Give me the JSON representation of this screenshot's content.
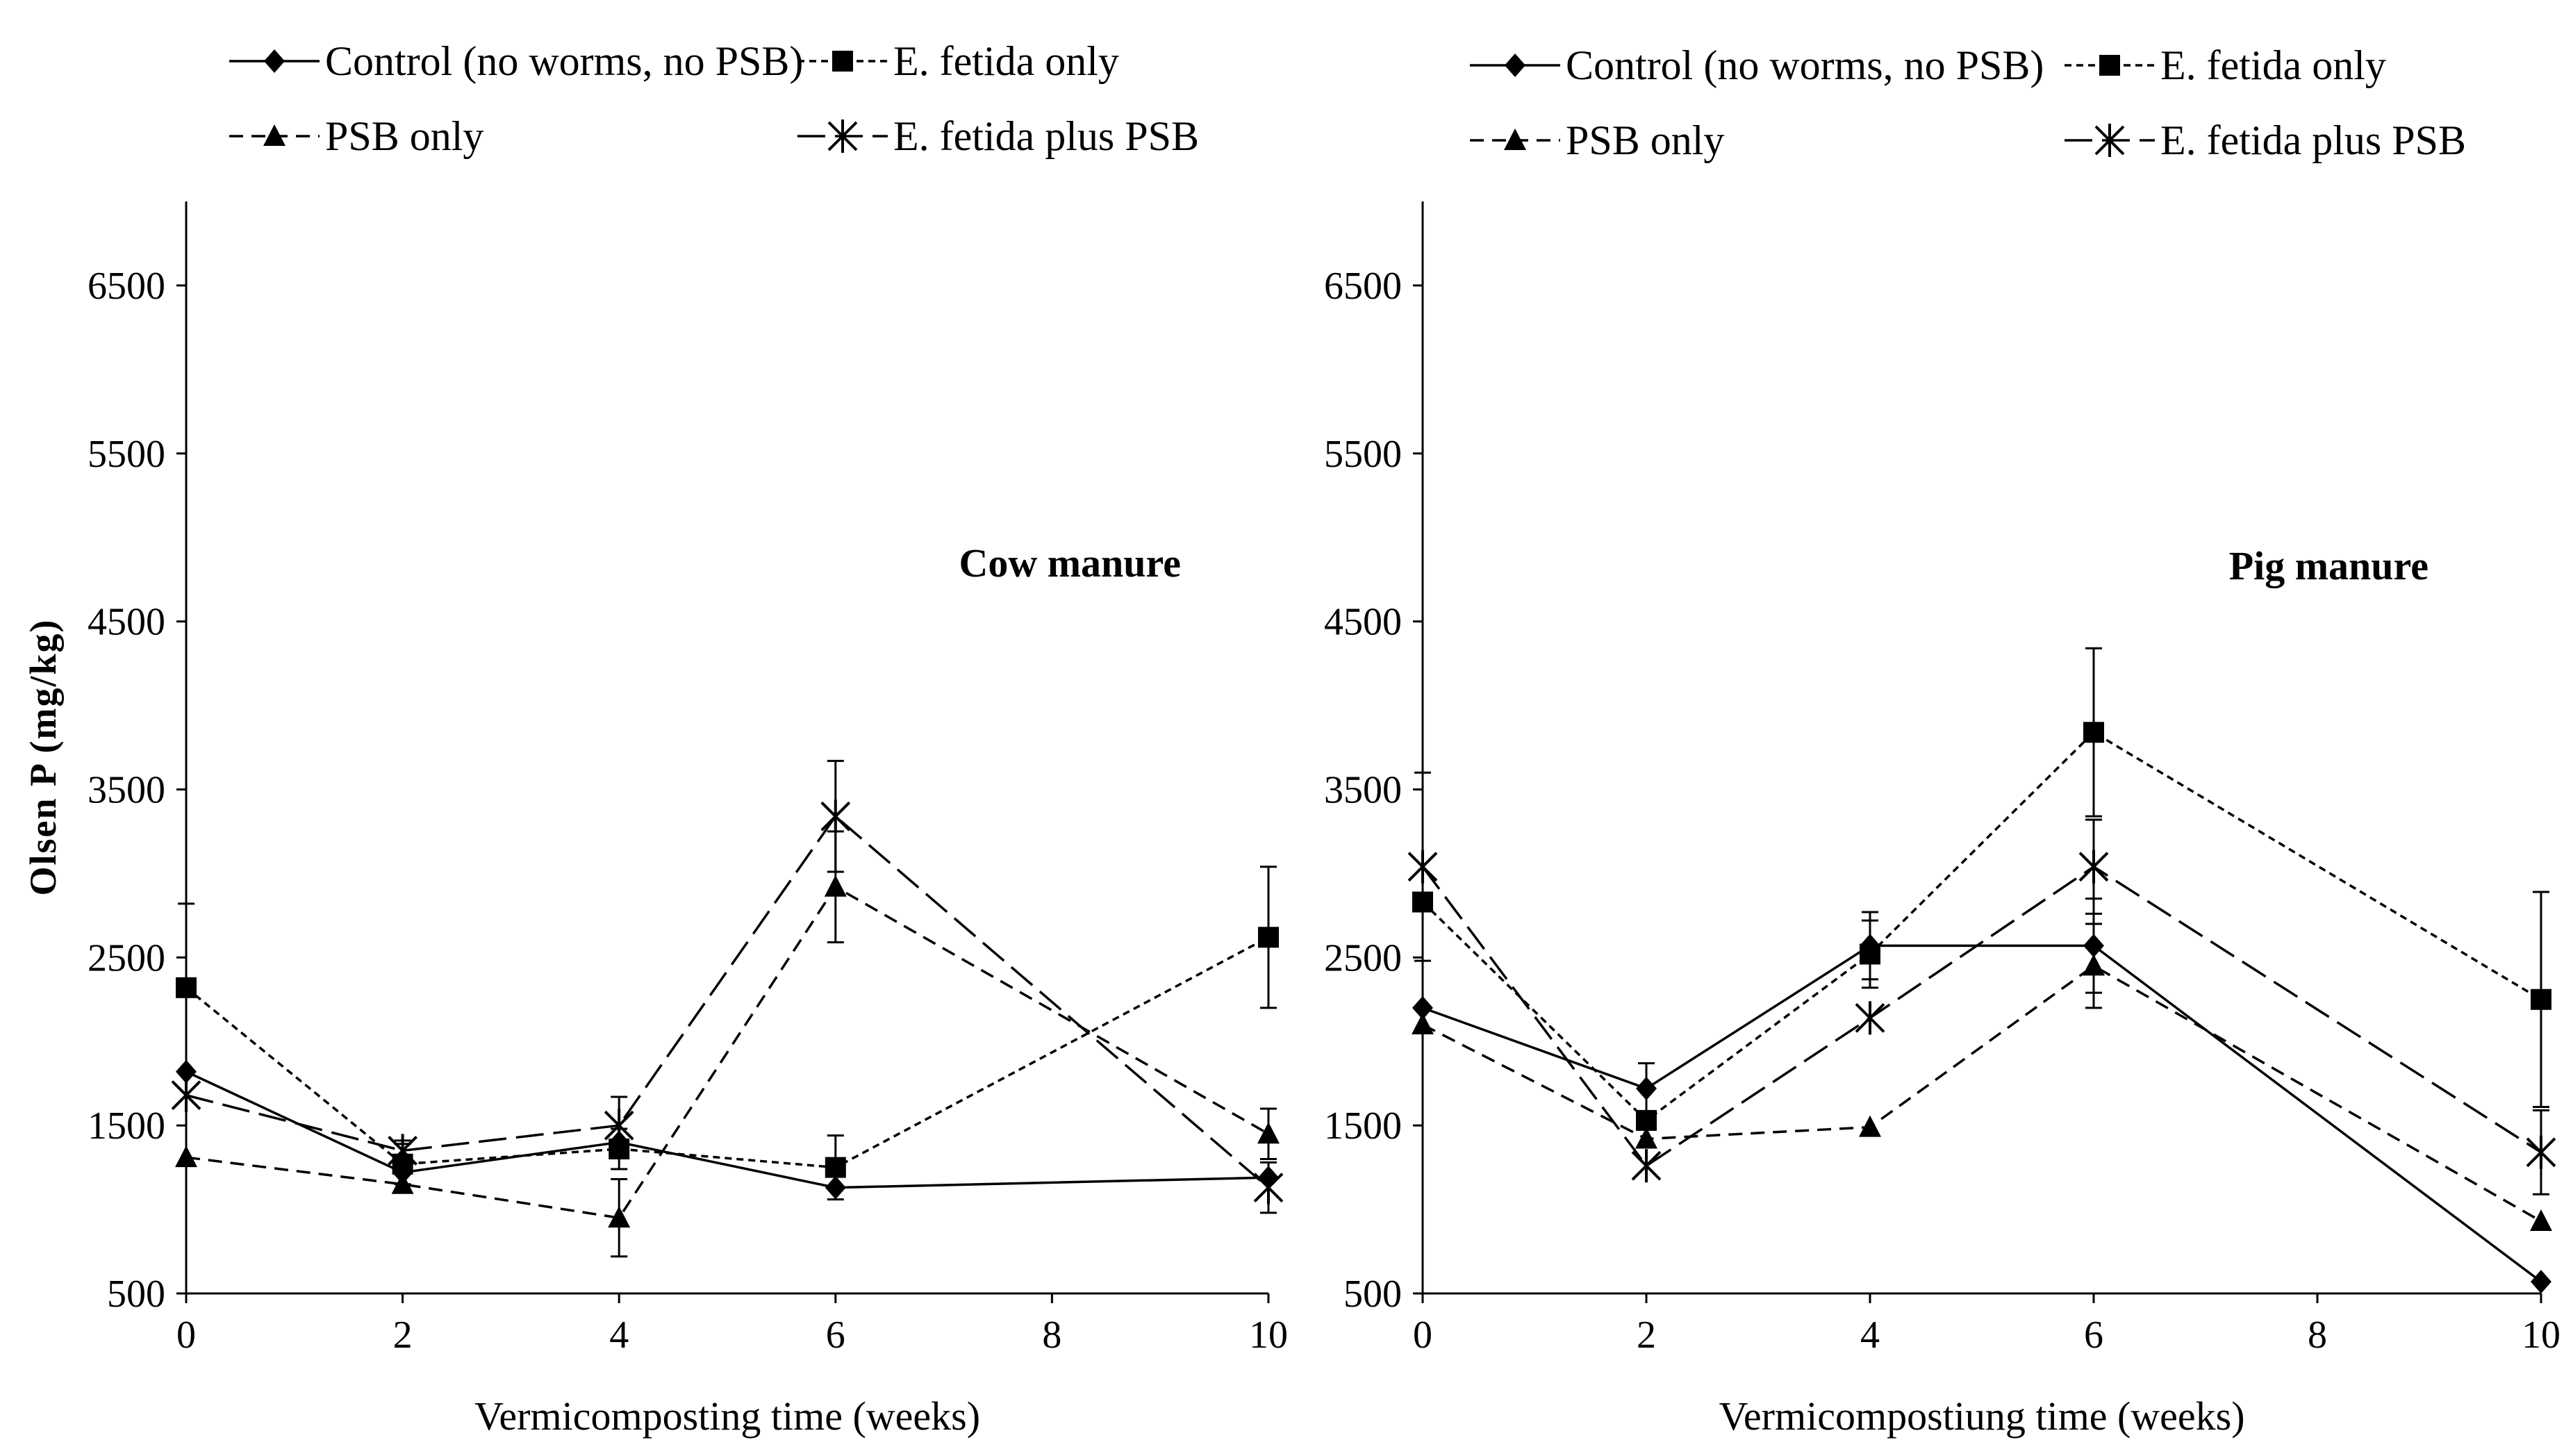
{
  "figure": {
    "y_axis_label": "Olsen P (mg/kg)"
  },
  "chart_data": [
    {
      "type": "line",
      "title": "Cow manure",
      "xlabel": "Vermicomposting time (weeks)",
      "ylabel": "Olsen P (mg/kg)",
      "xlim": [
        0,
        10
      ],
      "ylim": [
        500,
        7000
      ],
      "x_ticks": [
        0,
        2,
        4,
        6,
        8,
        10
      ],
      "y_ticks": [
        500,
        1500,
        2500,
        3500,
        4500,
        5500,
        6500
      ],
      "grid": false,
      "legend": "top",
      "series": [
        {
          "name": "Control (no worms, no PSB)",
          "marker": "diamond",
          "dash": "solid",
          "x": [
            0,
            2,
            4,
            6,
            10
          ],
          "values": [
            1820,
            1220,
            1400,
            1130,
            1190
          ],
          "errors": [
            0,
            0,
            0,
            0,
            0
          ]
        },
        {
          "name": "E. fetida only",
          "marker": "square",
          "dash": "dotted",
          "x": [
            0,
            2,
            4,
            6,
            10
          ],
          "values": [
            2320,
            1270,
            1360,
            1250,
            2620
          ],
          "errors": [
            500,
            120,
            120,
            190,
            420
          ]
        },
        {
          "name": "PSB only",
          "marker": "triangle",
          "dash": "dashed",
          "x": [
            0,
            2,
            4,
            6,
            10
          ],
          "values": [
            1310,
            1150,
            950,
            2920,
            1450
          ],
          "errors": [
            0,
            0,
            230,
            330,
            150
          ]
        },
        {
          "name": "E. fetida plus PSB",
          "marker": "asterisk",
          "dash": "longdash",
          "x": [
            0,
            2,
            4,
            6,
            10
          ],
          "values": [
            1680,
            1350,
            1500,
            3340,
            1130
          ],
          "errors": [
            0,
            60,
            170,
            330,
            150
          ]
        }
      ]
    },
    {
      "type": "line",
      "title": "Pig manure",
      "xlabel": "Vermicompostiung time (weeks)",
      "ylabel": "",
      "xlim": [
        0,
        10
      ],
      "ylim": [
        500,
        7000
      ],
      "x_ticks": [
        0,
        2,
        4,
        6,
        8,
        10
      ],
      "y_ticks": [
        500,
        1500,
        2500,
        3500,
        4500,
        5500,
        6500
      ],
      "grid": false,
      "legend": "top",
      "series": [
        {
          "name": "Control (no worms, no PSB)",
          "marker": "diamond",
          "dash": "solid",
          "x": [
            0,
            2,
            4,
            6,
            10
          ],
          "values": [
            2200,
            1720,
            2570,
            2570,
            570
          ],
          "errors": [
            0,
            150,
            200,
            280,
            0
          ]
        },
        {
          "name": "E. fetida only",
          "marker": "square",
          "dash": "dotted",
          "x": [
            0,
            2,
            4,
            6,
            10
          ],
          "values": [
            2830,
            1530,
            2520,
            3840,
            2250
          ],
          "errors": [
            0,
            0,
            200,
            500,
            640
          ]
        },
        {
          "name": "PSB only",
          "marker": "triangle",
          "dash": "dashed",
          "x": [
            0,
            2,
            4,
            6,
            10
          ],
          "values": [
            2100,
            1420,
            1490,
            2450,
            930
          ],
          "errors": [
            0,
            0,
            0,
            250,
            0
          ]
        },
        {
          "name": "E. fetida plus PSB",
          "marker": "asterisk",
          "dash": "longdash",
          "x": [
            0,
            2,
            4,
            6,
            10
          ],
          "values": [
            3040,
            1260,
            2140,
            3040,
            1340
          ],
          "errors": [
            560,
            0,
            0,
            280,
            250
          ]
        }
      ]
    }
  ]
}
